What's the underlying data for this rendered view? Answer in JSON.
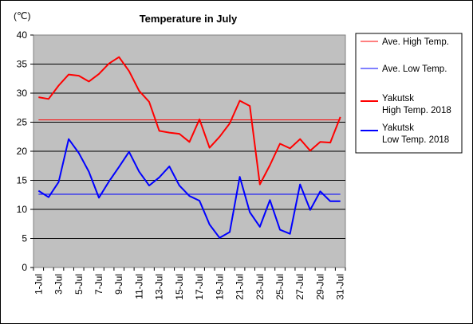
{
  "chart_data": {
    "type": "line",
    "title": "Temperature in July",
    "ylabel": "(℃)",
    "xlabel": "",
    "ylim": [
      0,
      40
    ],
    "yticks": [
      0,
      5,
      10,
      15,
      20,
      25,
      30,
      35,
      40
    ],
    "grid": "horizontal",
    "legend_position": "right",
    "plot_background": "#c0c0c0",
    "x": [
      "1-Jul",
      "2-Jul",
      "3-Jul",
      "4-Jul",
      "5-Jul",
      "6-Jul",
      "7-Jul",
      "8-Jul",
      "9-Jul",
      "10-Jul",
      "11-Jul",
      "12-Jul",
      "13-Jul",
      "14-Jul",
      "15-Jul",
      "16-Jul",
      "17-Jul",
      "18-Jul",
      "19-Jul",
      "20-Jul",
      "21-Jul",
      "22-Jul",
      "23-Jul",
      "24-Jul",
      "25-Jul",
      "26-Jul",
      "27-Jul",
      "28-Jul",
      "29-Jul",
      "30-Jul",
      "31-Jul"
    ],
    "xtick_labels": [
      "1-Jul",
      "3-Jul",
      "5-Jul",
      "7-Jul",
      "9-Jul",
      "11-Jul",
      "13-Jul",
      "15-Jul",
      "17-Jul",
      "19-Jul",
      "21-Jul",
      "23-Jul",
      "25-Jul",
      "27-Jul",
      "29-Jul",
      "31-Jul"
    ],
    "series": [
      {
        "name": "Ave. High Temp.",
        "color": "#ff0000",
        "width": 1,
        "values": [
          25.4,
          25.4,
          25.4,
          25.4,
          25.4,
          25.4,
          25.4,
          25.4,
          25.4,
          25.4,
          25.4,
          25.4,
          25.4,
          25.4,
          25.4,
          25.4,
          25.4,
          25.4,
          25.4,
          25.4,
          25.4,
          25.4,
          25.4,
          25.4,
          25.4,
          25.4,
          25.4,
          25.4,
          25.4,
          25.4,
          25.4
        ]
      },
      {
        "name": "Ave. Low Temp.",
        "color": "#0000ff",
        "width": 1,
        "values": [
          12.6,
          12.6,
          12.6,
          12.6,
          12.6,
          12.6,
          12.6,
          12.6,
          12.6,
          12.6,
          12.6,
          12.6,
          12.6,
          12.6,
          12.6,
          12.6,
          12.6,
          12.6,
          12.6,
          12.6,
          12.6,
          12.6,
          12.6,
          12.6,
          12.6,
          12.6,
          12.6,
          12.6,
          12.6,
          12.6,
          12.6
        ]
      },
      {
        "name": "Yakutsk High Temp. 2018",
        "color": "#ff0000",
        "width": 2,
        "values": [
          29.3,
          29.0,
          31.3,
          33.2,
          33.0,
          32.0,
          33.3,
          35.1,
          36.2,
          33.8,
          30.4,
          28.5,
          23.5,
          23.2,
          23.0,
          21.6,
          25.5,
          20.6,
          22.5,
          24.8,
          28.7,
          27.8,
          14.3,
          17.6,
          21.3,
          20.5,
          22.1,
          20.1,
          21.6,
          21.5,
          25.9
        ]
      },
      {
        "name": "Yakutsk Low Temp. 2018",
        "color": "#0000ff",
        "width": 2,
        "values": [
          13.2,
          12.1,
          14.7,
          22.1,
          19.7,
          16.5,
          12.0,
          14.8,
          17.3,
          19.9,
          16.5,
          14.1,
          15.5,
          17.4,
          14.1,
          12.3,
          11.5,
          7.4,
          5.1,
          6.1,
          15.6,
          9.5,
          7.0,
          11.6,
          6.5,
          5.8,
          14.3,
          9.9,
          13.1,
          11.4,
          11.4
        ]
      }
    ]
  },
  "legend": {
    "items": [
      {
        "lines": [
          "Ave. High Temp."
        ]
      },
      {
        "lines": [
          "Ave. Low Temp."
        ]
      },
      {
        "lines": [
          "Yakutsk",
          "High Temp. 2018"
        ]
      },
      {
        "lines": [
          "Yakutsk",
          "Low Temp. 2018"
        ]
      }
    ]
  }
}
